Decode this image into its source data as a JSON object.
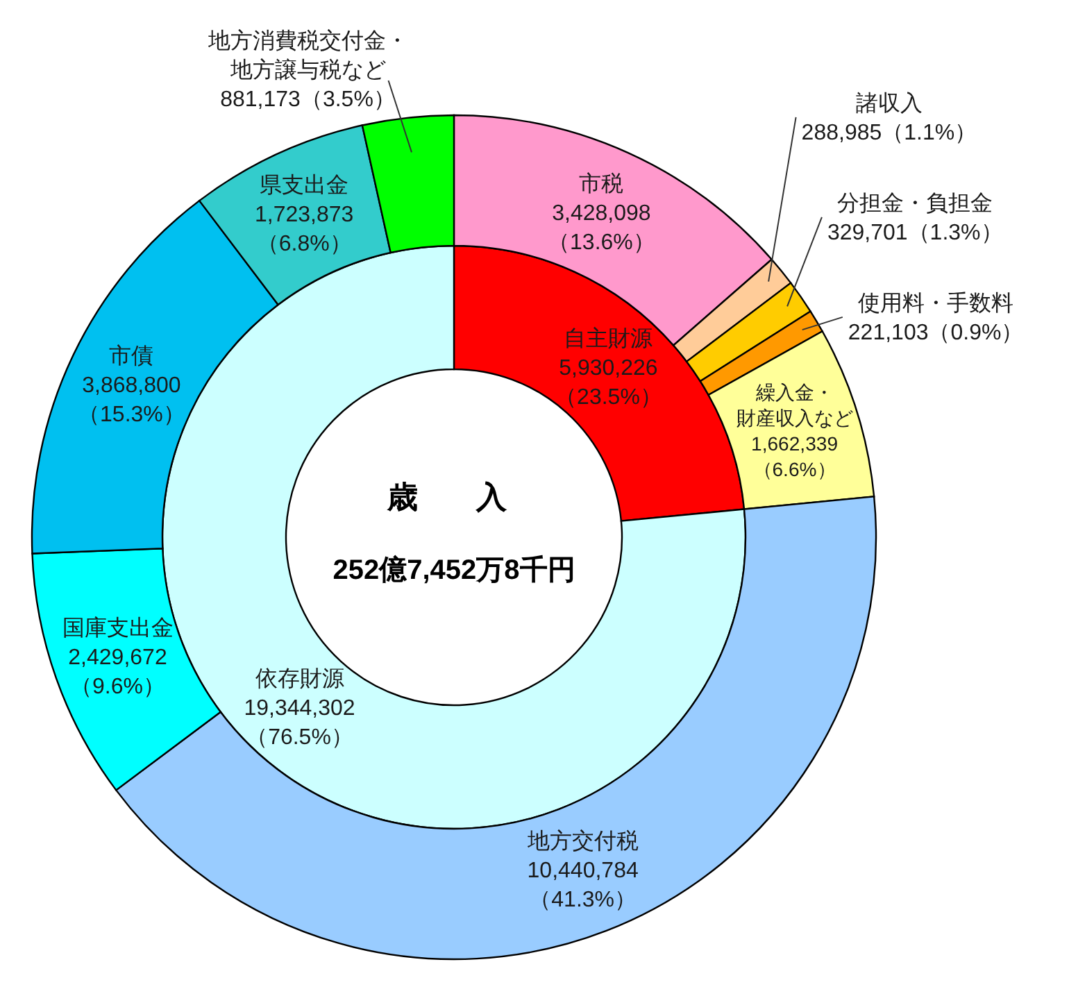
{
  "chart_data": [
    {
      "type": "donut",
      "title": "歳　入",
      "subtitle": "252億7,452万8千円",
      "categories": [
        "自主財源",
        "依存財源"
      ],
      "values": [
        5930226,
        19344302
      ],
      "colors": [
        "#ff0000",
        "#ccffff"
      ],
      "value_labels": [
        "5,930,226（23.5%）",
        "19,344,302（76.5%）"
      ]
    },
    {
      "type": "donut",
      "categories": [
        "市税",
        "諸収入",
        "分担金・負担金",
        "使用料・手数料",
        "繰入金・財産収入など",
        "地方交付税",
        "国庫支出金",
        "市債",
        "県支出金",
        "地方消費税交付金・地方譲与税など"
      ],
      "values": [
        3428098,
        288985,
        329701,
        221103,
        1662339,
        10440784,
        2429672,
        3868800,
        1723873,
        881173
      ],
      "colors": [
        "#ff99cc",
        "#ffcc99",
        "#ffcc00",
        "#ff9900",
        "#ffff99",
        "#99ccff",
        "#00ffff",
        "#00c0f0",
        "#33cccc",
        "#00ff00"
      ],
      "value_labels": [
        "3,428,098（13.6%）",
        "288,985（1.1%）",
        "329,701（1.3%）",
        "221,103（0.9%）",
        "1,662,339（6.6%）",
        "10,440,784（41.3%）",
        "2,429,672（9.6%）",
        "3,868,800（15.3%）",
        "1,723,873（6.8%）",
        "881,173（3.5%）"
      ]
    }
  ]
}
